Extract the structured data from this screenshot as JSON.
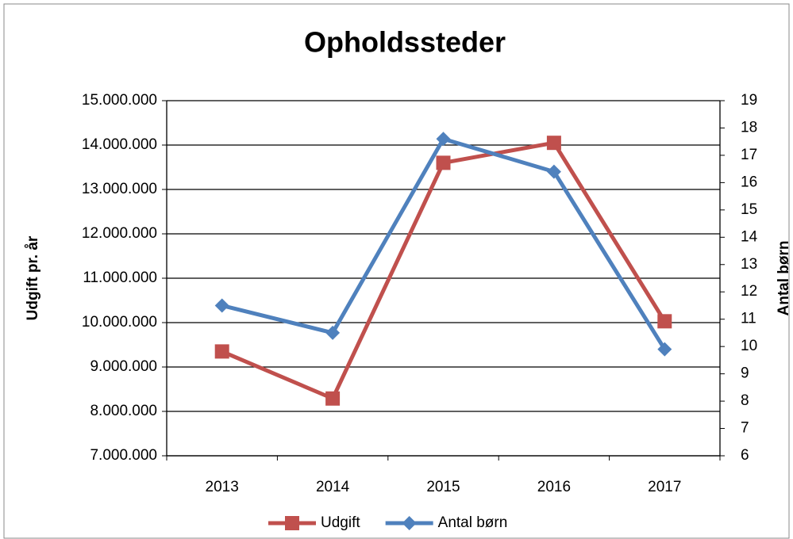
{
  "chart_data": {
    "type": "line",
    "title": "Opholdssteder",
    "categories": [
      "2013",
      "2014",
      "2015",
      "2016",
      "2017"
    ],
    "series": [
      {
        "name": "Udgift",
        "color": "#c0504d",
        "marker": "square",
        "values": [
          9350000,
          8290000,
          13600000,
          14050000,
          10030000
        ]
      },
      {
        "name": "Antal børn",
        "color": "#4f81bd",
        "marker": "diamond",
        "axis": "y2",
        "values": [
          11.5,
          10.5,
          17.6,
          16.4,
          9.9
        ]
      }
    ],
    "ylabel": "Udgift pr. år",
    "y2label": "Antal børn",
    "ylim": [
      7000000,
      15000000
    ],
    "yticks": [
      {
        "value": 7000000,
        "label": "7.000.000"
      },
      {
        "value": 8000000,
        "label": "8.000.000"
      },
      {
        "value": 9000000,
        "label": "9.000.000"
      },
      {
        "value": 10000000,
        "label": "10.000.000"
      },
      {
        "value": 11000000,
        "label": "11.000.000"
      },
      {
        "value": 12000000,
        "label": "12.000.000"
      },
      {
        "value": 13000000,
        "label": "13.000.000"
      },
      {
        "value": 14000000,
        "label": "14.000.000"
      },
      {
        "value": 15000000,
        "label": "15.000.000"
      }
    ],
    "y2lim": [
      6,
      19
    ],
    "y2ticks": [
      6,
      7,
      8,
      9,
      10,
      11,
      12,
      13,
      14,
      15,
      16,
      17,
      18,
      19
    ],
    "grid": true,
    "legend": "bottom"
  }
}
